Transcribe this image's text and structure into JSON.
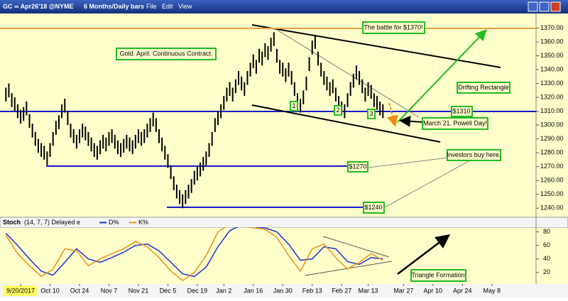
{
  "window": {
    "symbol": "GC ∞ Apr26'18 @NYME",
    "period": "6 Months/Daily bars",
    "menu": [
      "File",
      "Edit",
      "View"
    ]
  },
  "chart_data": [
    {
      "type": "hilo",
      "color": "#000000",
      "xlim": [
        -2,
        180
      ],
      "ylim": [
        1234,
        1380
      ],
      "yticks": [
        {
          "value": 1240,
          "label": "1240.00"
        },
        {
          "value": 1250,
          "label": "1250.00"
        },
        {
          "value": 1260,
          "label": "1260.00"
        },
        {
          "value": 1270,
          "label": "1270.00"
        },
        {
          "value": 1280,
          "label": "1280.00"
        },
        {
          "value": 1290,
          "label": "1290.00"
        },
        {
          "value": 1300,
          "label": "1300.00"
        },
        {
          "value": 1310,
          "label": "1310.00"
        },
        {
          "value": 1320,
          "label": "1320.00"
        },
        {
          "value": 1330,
          "label": "1330.00"
        },
        {
          "value": 1340,
          "label": "1340.00"
        },
        {
          "value": 1350,
          "label": "1350.00"
        },
        {
          "value": 1360,
          "label": "1360.00"
        },
        {
          "value": 1370,
          "label": "1370.00"
        }
      ],
      "high": [
        1327,
        1330,
        1323,
        1320,
        1315,
        1311,
        1313,
        1317,
        1308,
        1301,
        1295,
        1290,
        1287,
        1285,
        1281,
        1287,
        1295,
        1303,
        1307,
        1315,
        1319,
        1310,
        1301,
        1297,
        1293,
        1297,
        1301,
        1299,
        1295,
        1291,
        1287,
        1285,
        1289,
        1293,
        1291,
        1295,
        1297,
        1293,
        1289,
        1287,
        1290,
        1293,
        1291,
        1289,
        1293,
        1297,
        1295,
        1297,
        1301,
        1305,
        1309,
        1305,
        1297,
        1291,
        1285,
        1279,
        1271,
        1263,
        1257,
        1253,
        1250,
        1253,
        1257,
        1261,
        1267,
        1270,
        1273,
        1277,
        1281,
        1287,
        1295,
        1305,
        1310,
        1315,
        1321,
        1327,
        1331,
        1327,
        1333,
        1339,
        1335,
        1331,
        1339,
        1345,
        1351,
        1347,
        1355,
        1353,
        1359,
        1357,
        1363,
        1367,
        1355,
        1347,
        1345,
        1341,
        1345,
        1339,
        1331,
        1323,
        1319,
        1325,
        1335,
        1349,
        1361,
        1365,
        1353,
        1345,
        1339,
        1335,
        1331,
        1333,
        1327,
        1321,
        1317,
        1315,
        1323,
        1331,
        1337,
        1343,
        1339,
        1333,
        1327,
        1331,
        1329,
        1323,
        1321,
        1317,
        1315
      ],
      "low": [
        1317,
        1320,
        1313,
        1310,
        1305,
        1301,
        1303,
        1307,
        1298,
        1291,
        1285,
        1280,
        1277,
        1275,
        1271,
        1277,
        1285,
        1293,
        1297,
        1305,
        1309,
        1300,
        1291,
        1287,
        1283,
        1287,
        1291,
        1289,
        1285,
        1281,
        1277,
        1275,
        1279,
        1283,
        1281,
        1285,
        1287,
        1283,
        1279,
        1277,
        1280,
        1283,
        1281,
        1279,
        1283,
        1287,
        1285,
        1287,
        1291,
        1295,
        1299,
        1295,
        1287,
        1281,
        1275,
        1269,
        1261,
        1253,
        1247,
        1243,
        1240,
        1243,
        1247,
        1251,
        1257,
        1260,
        1263,
        1267,
        1271,
        1277,
        1285,
        1295,
        1300,
        1305,
        1311,
        1317,
        1321,
        1317,
        1323,
        1329,
        1325,
        1321,
        1329,
        1335,
        1341,
        1337,
        1345,
        1343,
        1349,
        1347,
        1353,
        1357,
        1345,
        1337,
        1335,
        1331,
        1335,
        1329,
        1321,
        1313,
        1309,
        1315,
        1325,
        1339,
        1351,
        1355,
        1343,
        1335,
        1329,
        1325,
        1321,
        1323,
        1317,
        1311,
        1307,
        1305,
        1313,
        1321,
        1327,
        1333,
        1329,
        1323,
        1317,
        1321,
        1319,
        1313,
        1311,
        1307,
        1305
      ],
      "annotations": [
        "Gold. April. Continuous Contract.",
        "The battle for $1370!",
        "Drifting Rectangle",
        "$1310",
        "March 21.  Powell Day!",
        "Investors buy here.",
        "$1270",
        "$1240",
        "1",
        "2",
        "3"
      ]
    },
    {
      "type": "line",
      "title": "Stoch",
      "subtitle": "(14, 7, 7) Delayed e",
      "xlim": [
        -2,
        180
      ],
      "ylim": [
        3,
        87
      ],
      "yticks": [
        20,
        40,
        60,
        80
      ],
      "xticks": [
        {
          "value": 5,
          "label": "9/20/2017"
        },
        {
          "value": 15,
          "label": "Oct 10"
        },
        {
          "value": 25,
          "label": "Oct 24"
        },
        {
          "value": 35,
          "label": "Nov 7"
        },
        {
          "value": 45,
          "label": "Nov 21"
        },
        {
          "value": 55,
          "label": "Dec 5"
        },
        {
          "value": 65,
          "label": "Dec 19"
        },
        {
          "value": 74,
          "label": "Jan 2"
        },
        {
          "value": 84,
          "label": "Jan 16"
        },
        {
          "value": 94,
          "label": "Jan 30"
        },
        {
          "value": 104,
          "label": "Feb 13"
        },
        {
          "value": 114,
          "label": "Feb 27"
        },
        {
          "value": 123,
          "label": "Mar 13"
        },
        {
          "value": 135,
          "label": "Mar 27"
        },
        {
          "value": 145,
          "label": "Apr 10"
        },
        {
          "value": 155,
          "label": "Apr 24"
        },
        {
          "value": 165,
          "label": "May 8"
        }
      ],
      "x": [
        0,
        4,
        8,
        12,
        16,
        20,
        24,
        28,
        32,
        36,
        40,
        44,
        48,
        52,
        56,
        60,
        64,
        68,
        72,
        76,
        80,
        84,
        88,
        92,
        96,
        100,
        104,
        108,
        112,
        116,
        120,
        124,
        128
      ],
      "series": [
        {
          "name": "D%",
          "color": "#1f2fd0",
          "values": [
            78,
            60,
            40,
            22,
            16,
            35,
            55,
            40,
            35,
            42,
            50,
            60,
            62,
            52,
            35,
            18,
            14,
            28,
            58,
            82,
            90,
            88,
            86,
            80,
            62,
            38,
            40,
            58,
            55,
            36,
            32,
            42,
            40
          ]
        },
        {
          "name": "K%",
          "color": "#e8901c",
          "values": [
            75,
            48,
            30,
            14,
            25,
            55,
            52,
            30,
            40,
            48,
            55,
            66,
            58,
            42,
            22,
            8,
            20,
            45,
            80,
            92,
            90,
            86,
            84,
            72,
            45,
            22,
            55,
            62,
            42,
            25,
            35,
            48,
            38
          ]
        }
      ]
    }
  ]
}
